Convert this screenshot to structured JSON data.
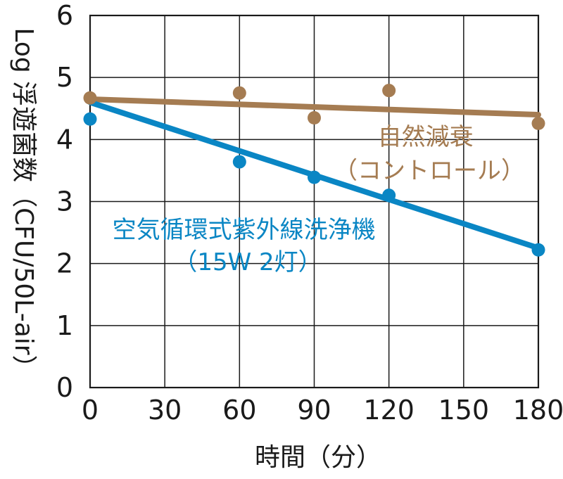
{
  "chart_data": {
    "type": "scatter",
    "x": [
      0,
      60,
      90,
      120,
      180
    ],
    "xticks": [
      "0",
      "30",
      "60",
      "90",
      "120",
      "150",
      "180"
    ],
    "yticks": [
      "0",
      "1",
      "2",
      "3",
      "4",
      "5",
      "6"
    ],
    "xlim": [
      0,
      180
    ],
    "ylim": [
      0,
      6
    ],
    "grid": true,
    "xlabel": "時間（分）",
    "ylabel": "Log 浮遊菌数（CFU/50L-air）",
    "series": [
      {
        "name": "自然減衰（コントロール）",
        "label_lines": [
          "自然減衰",
          "（コントロール）"
        ],
        "color": "#a57c52",
        "points": [
          [
            0,
            4.67
          ],
          [
            60,
            4.75
          ],
          [
            90,
            4.35
          ],
          [
            120,
            4.79
          ],
          [
            180,
            4.26
          ]
        ],
        "trend": [
          [
            0,
            4.65
          ],
          [
            180,
            4.4
          ]
        ]
      },
      {
        "name": "空気循環式紫外線洗浄機（15W 2灯）",
        "label_lines": [
          "空気循環式紫外線洗浄機",
          "（15W 2灯）"
        ],
        "color": "#0a86c4",
        "points": [
          [
            0,
            4.33
          ],
          [
            60,
            3.64
          ],
          [
            90,
            3.39
          ],
          [
            120,
            3.1
          ],
          [
            180,
            2.22
          ]
        ],
        "trend": [
          [
            0,
            4.6
          ],
          [
            180,
            2.25
          ]
        ]
      }
    ]
  }
}
